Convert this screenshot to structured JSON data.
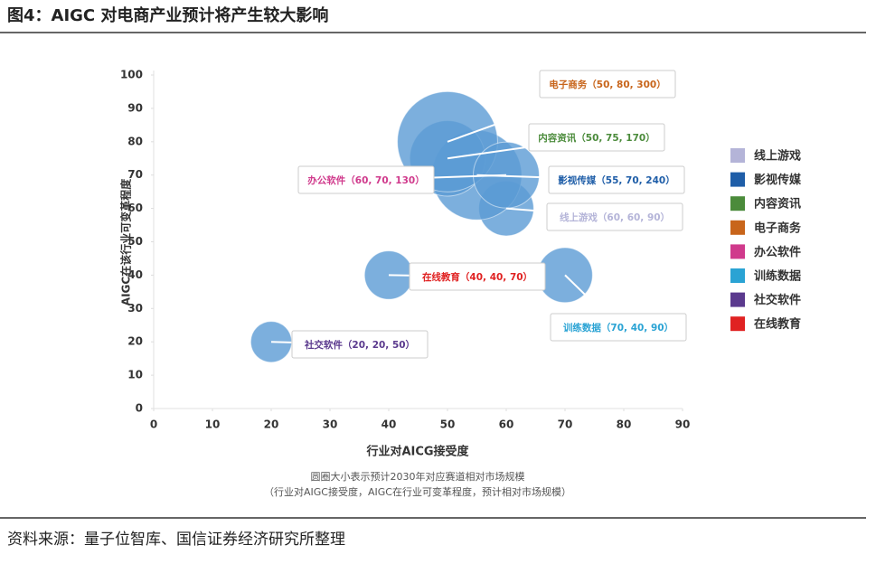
{
  "title": "图4：AIGC 对电商产业预计将产生较大影响",
  "source": "资料来源：量子位智库、国信证券经济研究所整理",
  "chart_data": {
    "type": "bubble",
    "x_label": "行业对AICG接受度",
    "y_label": "AIGC在该行业可变革程度",
    "notes": [
      "圆圈大小表示预计2030年对应赛道相对市场规模",
      "（行业对AIGC接受度，AIGC在行业可变革程度，预计相对市场规模）"
    ],
    "xlim": [
      0,
      90
    ],
    "xticks": [
      0,
      10,
      20,
      30,
      40,
      50,
      60,
      70,
      80,
      90
    ],
    "ylim": [
      0,
      100
    ],
    "yticks": [
      0,
      10,
      20,
      30,
      40,
      50,
      60,
      70,
      80,
      90,
      100
    ],
    "bubble_color": "#5b9bd5",
    "series": [
      {
        "name": "线上游戏",
        "color": "#b4b4d8",
        "x": [
          60
        ],
        "values": [
          60
        ],
        "sizes": [
          90
        ],
        "labels": [
          "线上游戏（60, 60, 90）"
        ]
      },
      {
        "name": "影视传媒",
        "color": "#1f5ea8",
        "x": [
          55
        ],
        "values": [
          70
        ],
        "sizes": [
          240
        ],
        "labels": [
          "影视传媒（55, 70, 240）"
        ]
      },
      {
        "name": "内容资讯",
        "color": "#4b8b3b",
        "x": [
          50
        ],
        "values": [
          75
        ],
        "sizes": [
          170
        ],
        "labels": [
          "内容资讯（50, 75, 170）"
        ]
      },
      {
        "name": "电子商务",
        "color": "#c8651b",
        "x": [
          50
        ],
        "values": [
          80
        ],
        "sizes": [
          300
        ],
        "labels": [
          "电子商务（50, 80, 300）"
        ]
      },
      {
        "name": "办公软件",
        "color": "#d03a8c",
        "x": [
          60
        ],
        "values": [
          70
        ],
        "sizes": [
          130
        ],
        "labels": [
          "办公软件（60, 70, 130）"
        ]
      },
      {
        "name": "训练数据",
        "color": "#2aa3d4",
        "x": [
          70
        ],
        "values": [
          40
        ],
        "sizes": [
          90
        ],
        "labels": [
          "训练数据（70, 40, 90）"
        ]
      },
      {
        "name": "社交软件",
        "color": "#5b3a8e",
        "x": [
          20
        ],
        "values": [
          20
        ],
        "sizes": [
          50
        ],
        "labels": [
          "社交软件（20, 20, 50）"
        ]
      },
      {
        "name": "在线教育",
        "color": "#e02222",
        "x": [
          40
        ],
        "values": [
          40
        ],
        "sizes": [
          70
        ],
        "labels": [
          "在线教育（40, 40, 70）"
        ]
      }
    ]
  }
}
